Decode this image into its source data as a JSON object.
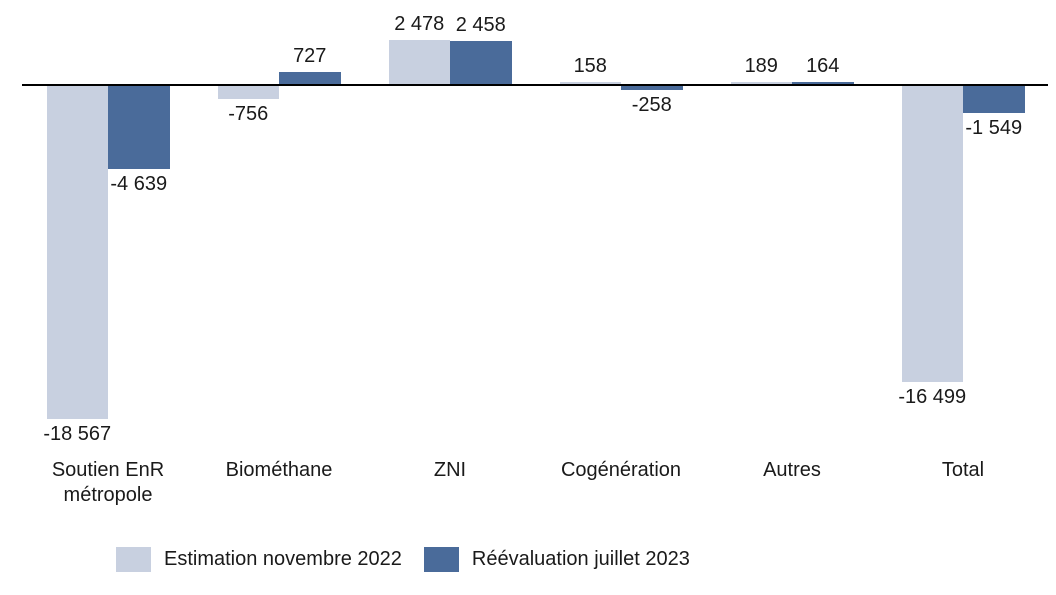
{
  "chart_data": {
    "type": "bar",
    "title": "",
    "xlabel": "",
    "ylabel": "",
    "grid": false,
    "legend_position": "bottom",
    "axis_line_color": "#000000",
    "ylim": [
      -20000,
      3000
    ],
    "categories": [
      "Soutien EnR métropole",
      "Biométhane",
      "ZNI",
      "Cogénération",
      "Autres",
      "Total"
    ],
    "series": [
      {
        "name": "Estimation novembre 2022",
        "color": "#c8d0e0",
        "values": [
          -18567,
          -756,
          2478,
          158,
          189,
          -16499
        ],
        "labels": [
          "-18 567",
          "-756",
          "2 478",
          "158",
          "189",
          "-16 499"
        ]
      },
      {
        "name": "Réévaluation juillet 2023",
        "color": "#4a6b9a",
        "values": [
          -4639,
          727,
          2458,
          -258,
          164,
          -1549
        ],
        "labels": [
          "-4 639",
          "727",
          "2 458",
          "-258",
          "164",
          "-1 549"
        ]
      }
    ]
  },
  "legend": {
    "items": [
      {
        "label": "Estimation novembre 2022",
        "color": "#c8d0e0"
      },
      {
        "label": "Réévaluation juillet 2023",
        "color": "#4a6b9a"
      }
    ]
  }
}
